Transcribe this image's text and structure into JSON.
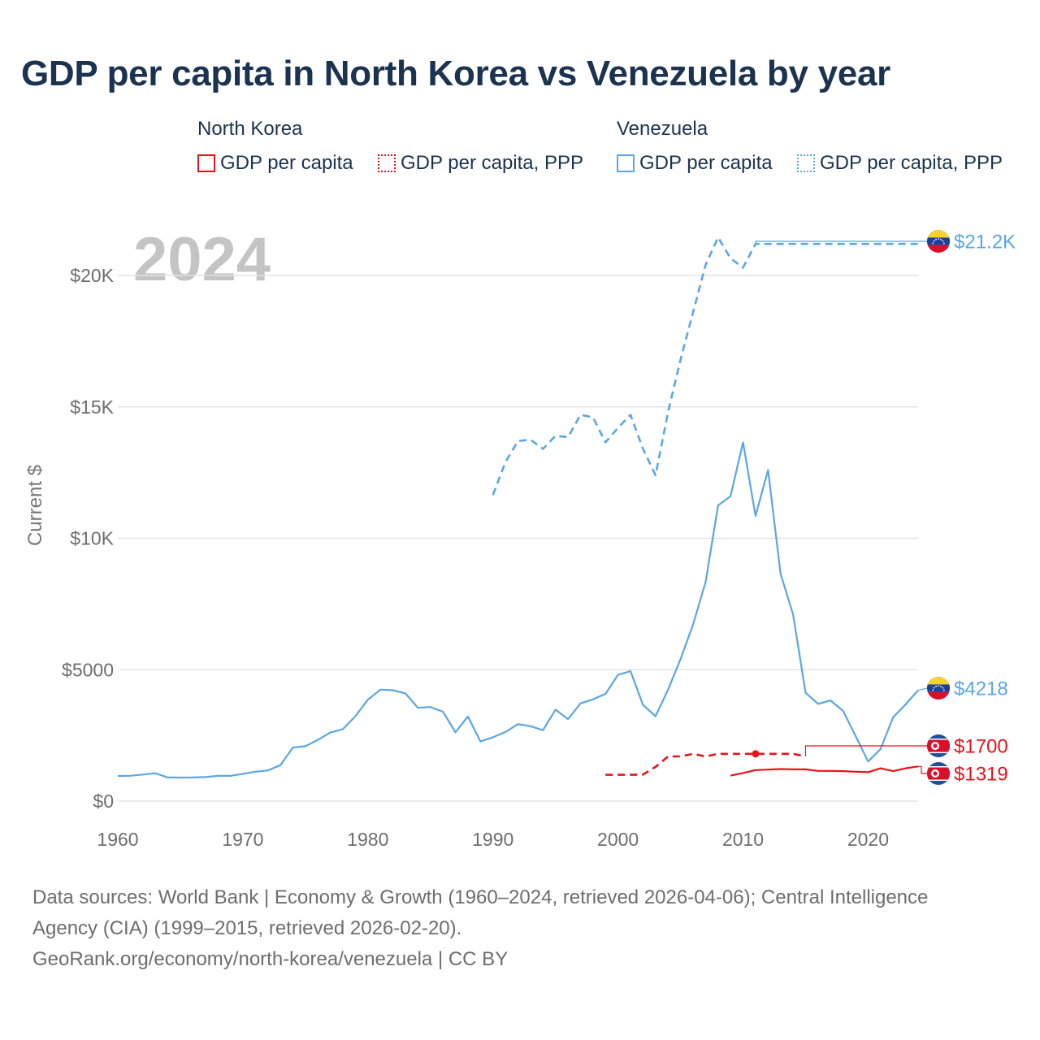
{
  "title": "GDP per capita in North Korea vs Venezuela by year",
  "legend": {
    "groups": [
      {
        "name": "North Korea",
        "items": [
          "GDP per capita",
          "GDP per capita, PPP"
        ]
      },
      {
        "name": "Venezuela",
        "items": [
          "GDP per capita",
          "GDP per capita, PPP"
        ]
      }
    ]
  },
  "year_label": "2024",
  "source": {
    "line1": "Data sources: World Bank | Economy & Growth (1960–2024, retrieved 2026-04-06); Central Intelligence",
    "line2": "Agency (CIA) (1999–2015, retrieved 2026-02-20).",
    "line3": "GeoRank.org/economy/north-korea/venezuela | CC BY"
  },
  "colors": {
    "north_korea": "#e8121b",
    "venezuela": "#5aa6e6"
  },
  "chart_data": {
    "type": "line",
    "ylabel": "Current $",
    "xlim": [
      1960,
      2024
    ],
    "ylim": [
      0,
      22000
    ],
    "x_ticks": [
      1960,
      1970,
      1980,
      1990,
      2000,
      2010,
      2020
    ],
    "y_ticks": [
      {
        "value": 0,
        "label": "$0"
      },
      {
        "value": 5000,
        "label": "$5000"
      },
      {
        "value": 10000,
        "label": "$10K"
      },
      {
        "value": 15000,
        "label": "$15K"
      },
      {
        "value": 20000,
        "label": "$20K"
      }
    ],
    "end_labels": [
      {
        "series": "Venezuela GDP per capita, PPP",
        "text": "$21.2K",
        "color": "#5aa6e6",
        "value": 21200
      },
      {
        "series": "Venezuela GDP per capita",
        "text": "$4218",
        "color": "#5aa6e6",
        "value": 4218
      },
      {
        "series": "North Korea GDP per capita, PPP",
        "text": "$1700",
        "color": "#e8121b",
        "value": 1700
      },
      {
        "series": "North Korea GDP per capita",
        "text": "$1319",
        "color": "#e8121b",
        "value": 1319
      }
    ],
    "series": [
      {
        "name": "Venezuela GDP per capita",
        "country": "Venezuela",
        "color": "#5aa6e6",
        "style": "solid",
        "x": [
          1960,
          1961,
          1962,
          1963,
          1964,
          1965,
          1966,
          1967,
          1968,
          1969,
          1970,
          1971,
          1972,
          1973,
          1974,
          1975,
          1976,
          1977,
          1978,
          1979,
          1980,
          1981,
          1982,
          1983,
          1984,
          1985,
          1986,
          1987,
          1988,
          1989,
          1990,
          1991,
          1992,
          1993,
          1994,
          1995,
          1996,
          1997,
          1998,
          1999,
          2000,
          2001,
          2002,
          2003,
          2004,
          2005,
          2006,
          2007,
          2008,
          2009,
          2010,
          2011,
          2012,
          2013,
          2014,
          2015,
          2016,
          2017,
          2018,
          2019,
          2020,
          2021,
          2022,
          2023,
          2024
        ],
        "values": [
          955,
          965,
          1010,
          1060,
          900,
          895,
          900,
          915,
          960,
          960,
          1040,
          1120,
          1170,
          1370,
          2040,
          2090,
          2330,
          2610,
          2740,
          3230,
          3860,
          4240,
          4220,
          4100,
          3550,
          3580,
          3400,
          2620,
          3220,
          2270,
          2430,
          2630,
          2930,
          2850,
          2700,
          3480,
          3120,
          3720,
          3870,
          4080,
          4800,
          4950,
          3660,
          3230,
          4240,
          5400,
          6720,
          8330,
          11250,
          11600,
          13650,
          10850,
          12600,
          8650,
          7100,
          4120,
          3700,
          3830,
          3430,
          2480,
          1510,
          1980,
          3190,
          3680,
          4218
        ]
      },
      {
        "name": "Venezuela GDP per capita, PPP",
        "country": "Venezuela",
        "color": "#5aa6e6",
        "style": "dashed",
        "x": [
          1990,
          1991,
          1992,
          1993,
          1994,
          1995,
          1996,
          1997,
          1998,
          1999,
          2000,
          2001,
          2002,
          2003,
          2004,
          2005,
          2006,
          2007,
          2008,
          2009,
          2010,
          2011,
          2024
        ],
        "values": [
          11650,
          12900,
          13700,
          13750,
          13400,
          13900,
          13850,
          14700,
          14600,
          13650,
          14200,
          14700,
          13400,
          12400,
          14800,
          16800,
          18600,
          20400,
          21450,
          20650,
          20300,
          21200,
          21200
        ]
      },
      {
        "name": "North Korea GDP per capita",
        "country": "North Korea",
        "color": "#e8121b",
        "style": "solid",
        "x": [
          2009,
          2010,
          2011,
          2012,
          2013,
          2014,
          2015,
          2016,
          2017,
          2018,
          2019,
          2020,
          2021,
          2022,
          2023,
          2024
        ],
        "values": [
          970,
          1070,
          1180,
          1200,
          1220,
          1210,
          1210,
          1150,
          1150,
          1140,
          1120,
          1100,
          1250,
          1140,
          1250,
          1319
        ]
      },
      {
        "name": "North Korea GDP per capita, PPP",
        "country": "North Korea",
        "color": "#e8121b",
        "style": "dashed",
        "x": [
          1999,
          2000,
          2001,
          2002,
          2003,
          2004,
          2005,
          2006,
          2007,
          2008,
          2009,
          2010,
          2011,
          2012,
          2013,
          2014,
          2015
        ],
        "values": [
          1000,
          1000,
          1000,
          1010,
          1300,
          1700,
          1700,
          1800,
          1700,
          1800,
          1800,
          1800,
          1800,
          1800,
          1800,
          1800,
          1700
        ]
      }
    ]
  }
}
